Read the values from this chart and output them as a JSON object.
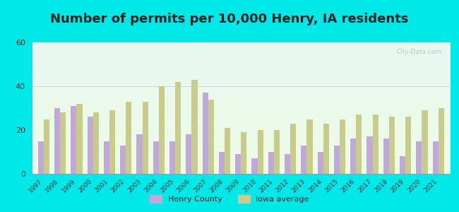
{
  "title": "Number of permits per 10,000 Henry, IA residents",
  "years": [
    1997,
    1998,
    1999,
    2000,
    2001,
    2002,
    2003,
    2004,
    2005,
    2006,
    2007,
    2008,
    2009,
    2010,
    2011,
    2012,
    2013,
    2014,
    2015,
    2016,
    2017,
    2018,
    2019,
    2020,
    2021
  ],
  "henry_county": [
    15,
    30,
    31,
    26,
    15,
    13,
    18,
    15,
    15,
    18,
    37,
    10,
    9,
    7,
    10,
    9,
    13,
    10,
    13,
    16,
    17,
    16,
    8,
    15,
    15
  ],
  "iowa_average": [
    25,
    28,
    32,
    28,
    29,
    33,
    33,
    40,
    42,
    43,
    34,
    21,
    19,
    20,
    20,
    23,
    25,
    23,
    25,
    27,
    27,
    26,
    26,
    29,
    30
  ],
  "henry_color": "#c0a8d8",
  "iowa_color": "#c8cc8a",
  "background_outer": "#00e8e8",
  "ylim": [
    0,
    60
  ],
  "yticks": [
    0,
    20,
    40,
    60
  ],
  "bar_width": 0.35,
  "title_fontsize": 13,
  "watermark": "City-Data.com"
}
